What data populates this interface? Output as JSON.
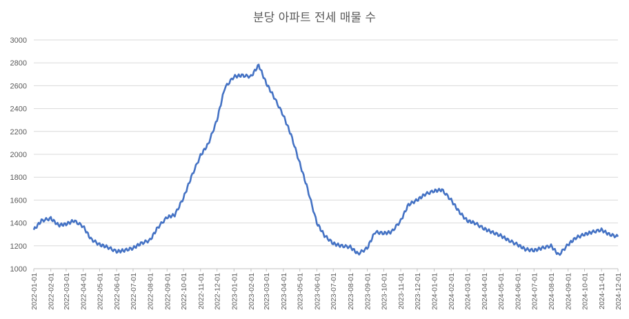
{
  "chart_data": {
    "type": "line",
    "title": "분당 아파트 전세 매물 수",
    "xlabel": "",
    "ylabel": "",
    "ylim": [
      1000,
      3000
    ],
    "yticks": [
      1000,
      1200,
      1400,
      1600,
      1800,
      2000,
      2200,
      2400,
      2600,
      2800,
      3000
    ],
    "xticks": [
      "2022-01-01",
      "2022-02-01",
      "2022-03-01",
      "2022-04-01",
      "2022-05-01",
      "2022-06-01",
      "2022-07-01",
      "2022-08-01",
      "2022-09-01",
      "2022-10-01",
      "2022-11-01",
      "2022-12-01",
      "2023-01-01",
      "2023-02-01",
      "2023-03-01",
      "2023-04-01",
      "2023-05-01",
      "2023-06-01",
      "2023-07-01",
      "2023-08-01",
      "2023-09-01",
      "2023-10-01",
      "2023-11-01",
      "2023-12-01",
      "2024-01-01",
      "2024-02-01",
      "2024-03-01",
      "2024-04-01",
      "2024-05-01",
      "2024-06-01",
      "2024-07-01",
      "2024-08-01",
      "2024-09-01",
      "2024-10-01",
      "2024-11-01",
      "2024-12-01"
    ],
    "grid": true,
    "series": [
      {
        "color": "#4472c4",
        "x": [
          "2022-01-01",
          "2022-01-15",
          "2022-02-01",
          "2022-02-15",
          "2022-03-01",
          "2022-03-15",
          "2022-04-01",
          "2022-04-15",
          "2022-05-01",
          "2022-05-15",
          "2022-06-01",
          "2022-06-15",
          "2022-07-01",
          "2022-07-15",
          "2022-08-01",
          "2022-08-15",
          "2022-09-01",
          "2022-09-15",
          "2022-10-01",
          "2022-10-15",
          "2022-11-01",
          "2022-11-15",
          "2022-12-01",
          "2022-12-15",
          "2023-01-01",
          "2023-01-15",
          "2023-02-01",
          "2023-02-15",
          "2023-03-01",
          "2023-03-15",
          "2023-04-01",
          "2023-04-15",
          "2023-05-01",
          "2023-05-15",
          "2023-06-01",
          "2023-06-15",
          "2023-07-01",
          "2023-07-15",
          "2023-08-01",
          "2023-08-15",
          "2023-09-01",
          "2023-09-15",
          "2023-10-01",
          "2023-10-15",
          "2023-11-01",
          "2023-11-15",
          "2023-12-01",
          "2023-12-15",
          "2024-01-01",
          "2024-01-15",
          "2024-02-01",
          "2024-02-15",
          "2024-03-01",
          "2024-03-15",
          "2024-04-01",
          "2024-04-15",
          "2024-05-01",
          "2024-05-15",
          "2024-06-01",
          "2024-06-15",
          "2024-07-01",
          "2024-07-15",
          "2024-08-01",
          "2024-08-15",
          "2024-09-01",
          "2024-09-15",
          "2024-10-01",
          "2024-10-15",
          "2024-11-01",
          "2024-11-15",
          "2024-12-01"
        ],
        "values": [
          1340,
          1420,
          1440,
          1380,
          1390,
          1420,
          1370,
          1260,
          1210,
          1190,
          1150,
          1160,
          1180,
          1220,
          1250,
          1360,
          1450,
          1470,
          1620,
          1800,
          1990,
          2090,
          2300,
          2580,
          2680,
          2690,
          2680,
          2780,
          2620,
          2500,
          2340,
          2170,
          1920,
          1700,
          1400,
          1290,
          1220,
          1200,
          1190,
          1130,
          1180,
          1320,
          1310,
          1320,
          1420,
          1560,
          1600,
          1650,
          1680,
          1690,
          1600,
          1500,
          1420,
          1400,
          1350,
          1320,
          1290,
          1250,
          1210,
          1170,
          1160,
          1180,
          1200,
          1120,
          1210,
          1270,
          1300,
          1320,
          1340,
          1300,
          1280
        ]
      }
    ]
  }
}
